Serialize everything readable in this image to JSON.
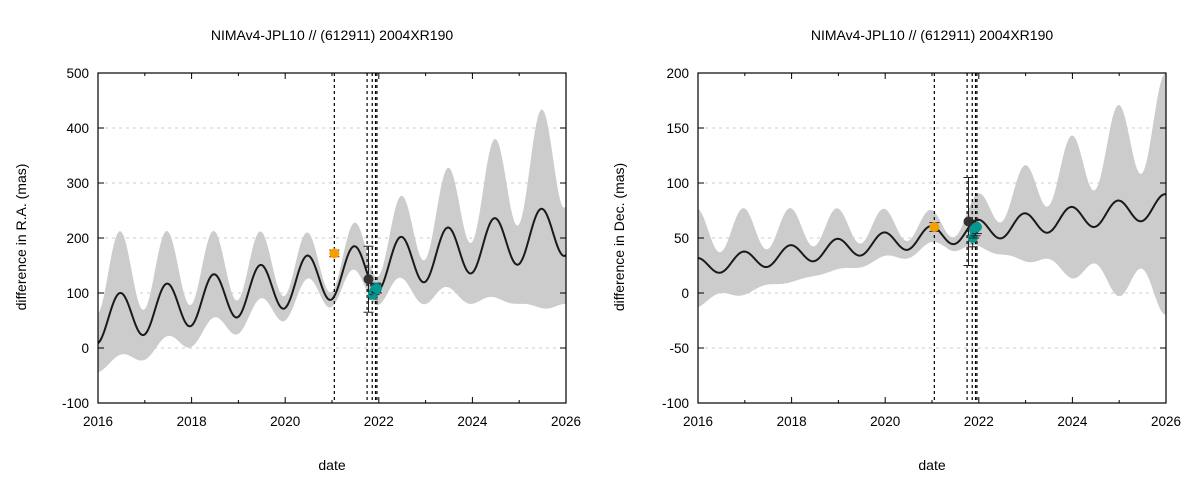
{
  "chart_data": [
    {
      "type": "line",
      "title": "NIMAv4-JPL10 // (612911) 2004XR190",
      "xlabel": "date",
      "ylabel": "difference in R.A. (mas)",
      "xlim": [
        2016,
        2026
      ],
      "ylim": [
        -100,
        500
      ],
      "xticks": [
        2016,
        2018,
        2020,
        2022,
        2024,
        2026
      ],
      "yticks": [
        -100,
        0,
        100,
        200,
        300,
        400,
        500
      ],
      "grid": true,
      "model": {
        "base0": 50,
        "slope": 16.5,
        "amp0": 42,
        "amp_slope": 0.5,
        "phase": 2016.22,
        "period": 1.0
      },
      "band": {
        "sigma0": 120,
        "sigma_min": 30,
        "sigma_max": 200,
        "t_min": 2021.0
      },
      "vlines": [
        2021.05,
        2021.75,
        2021.86,
        2021.93,
        2021.96
      ],
      "points": [
        {
          "x": 2021.05,
          "y": 172,
          "err": 6,
          "color": "#f5a000"
        },
        {
          "x": 2021.78,
          "y": 125,
          "err": 60,
          "color": "#333333"
        },
        {
          "x": 2021.87,
          "y": 97,
          "err": 8,
          "color": "#009a93"
        },
        {
          "x": 2021.91,
          "y": 105,
          "err": 8,
          "color": "#009a93"
        },
        {
          "x": 2021.94,
          "y": 110,
          "err": 8,
          "color": "#009a93"
        },
        {
          "x": 2021.96,
          "y": 108,
          "err": 8,
          "color": "#009a93"
        }
      ]
    },
    {
      "type": "line",
      "title": "NIMAv4-JPL10 // (612911) 2004XR190",
      "xlabel": "date",
      "ylabel": "difference in Dec. (mas)",
      "xlim": [
        2016,
        2026
      ],
      "ylim": [
        -100,
        200
      ],
      "xticks": [
        2016,
        2018,
        2020,
        2022,
        2024,
        2026
      ],
      "yticks": [
        -100,
        -50,
        0,
        50,
        100,
        150,
        200
      ],
      "grid": true,
      "model": {
        "base0": 24,
        "slope": 5.5,
        "amp0": 8,
        "amp_slope": 0.3,
        "phase": 2016.72,
        "period": 1.0
      },
      "band": {
        "sigma0": 45,
        "sigma_min": 12,
        "sigma_max": 110,
        "t_min": 2021.3
      },
      "vlines": [
        2021.05,
        2021.75,
        2021.86,
        2021.93,
        2021.96
      ],
      "points": [
        {
          "x": 2021.05,
          "y": 60,
          "err": 4,
          "color": "#f5a000"
        },
        {
          "x": 2021.78,
          "y": 65,
          "err": 40,
          "color": "#333333"
        },
        {
          "x": 2021.87,
          "y": 50,
          "err": 8,
          "color": "#009a93"
        },
        {
          "x": 2021.9,
          "y": 57,
          "err": 7,
          "color": "#009a93"
        },
        {
          "x": 2021.93,
          "y": 59,
          "err": 7,
          "color": "#009a93"
        },
        {
          "x": 2021.96,
          "y": 60,
          "err": 6,
          "color": "#009a93"
        }
      ]
    }
  ]
}
